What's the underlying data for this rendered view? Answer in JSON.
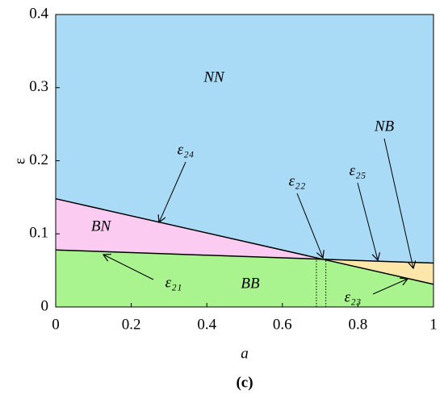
{
  "chart_data": {
    "type": "region",
    "xlabel": "a",
    "ylabel": "ε",
    "caption": "(c)",
    "xlim": [
      0,
      1
    ],
    "ylim": [
      0,
      0.4
    ],
    "xticks": [
      0,
      0.2,
      0.4,
      0.6,
      0.8,
      1
    ],
    "yticks": [
      0,
      0.1,
      0.2,
      0.3,
      0.4
    ],
    "lines": [
      {
        "x": [
          0,
          1
        ],
        "values": [
          0.148,
          0.031
        ]
      },
      {
        "x": [
          0,
          1
        ],
        "values": [
          0.078,
          0.06
        ]
      }
    ],
    "line_color": "#000000",
    "dotted_x": [
      0.69,
      0.715
    ],
    "regions": [
      {
        "label": "NN",
        "color": "#a9dbf6"
      },
      {
        "label": "BN",
        "color": "#fbcbf1"
      },
      {
        "label": "BB",
        "color": "#a9f48f"
      },
      {
        "label": "NB",
        "color": "#fde6aa"
      }
    ],
    "annotations": [
      "ε₂₄",
      "ε₂₂",
      "ε₂₅",
      "NB",
      "ε₂₁",
      "ε₂₃"
    ]
  }
}
